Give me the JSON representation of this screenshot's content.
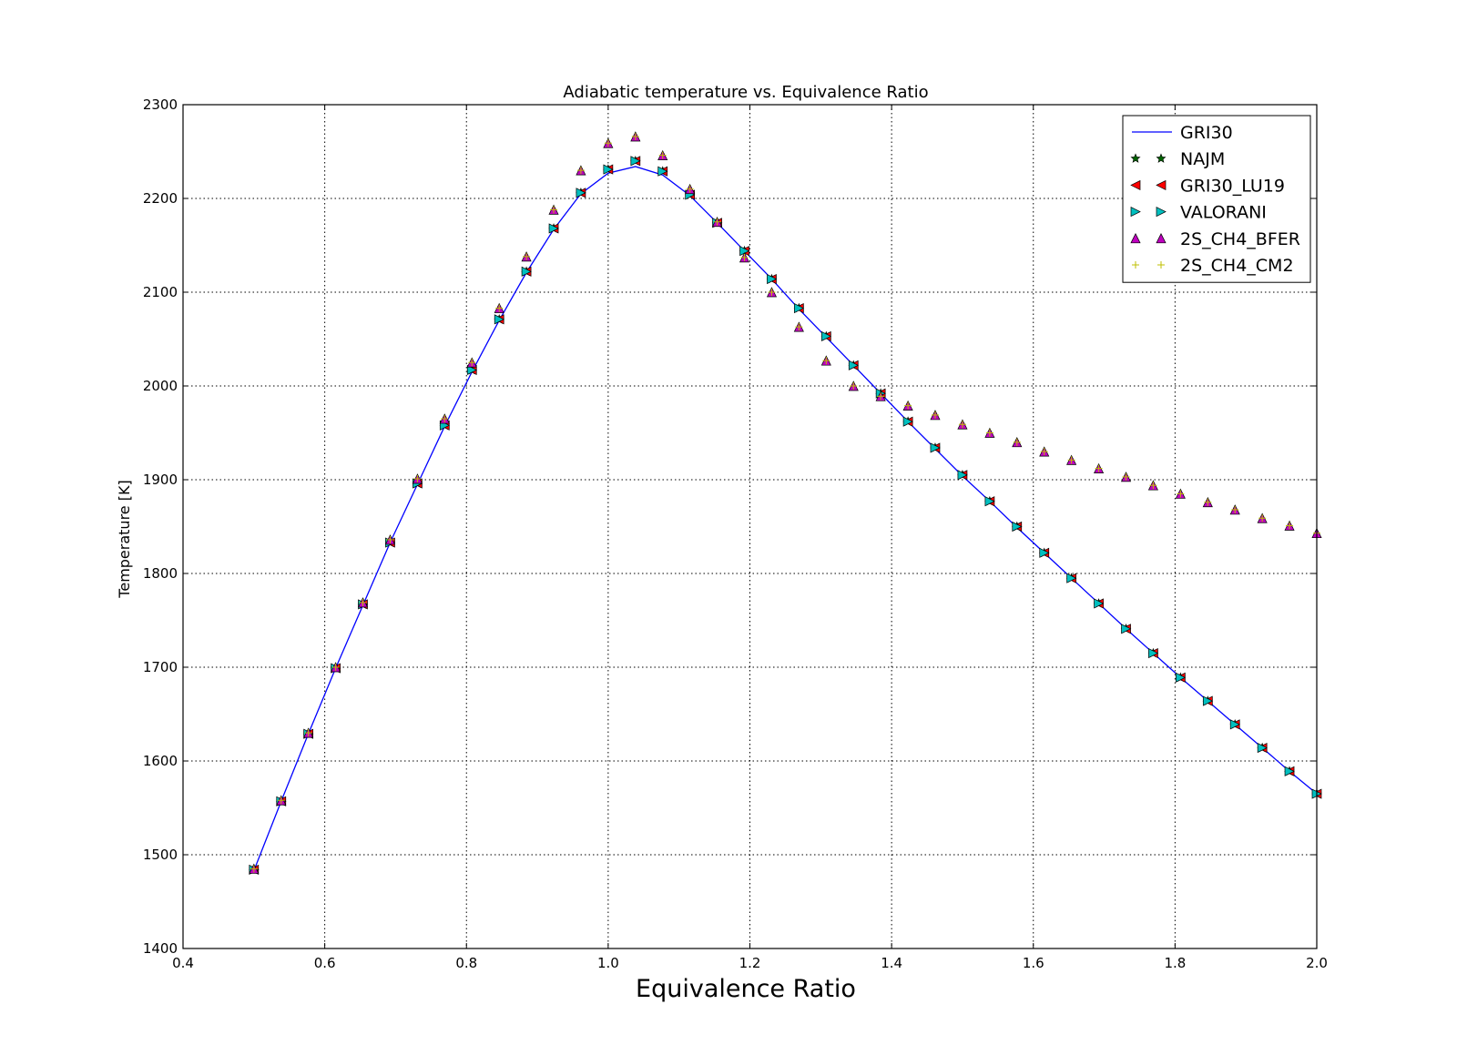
{
  "chart_data": {
    "type": "line",
    "title": "Adiabatic temperature vs. Equivalence Ratio",
    "xlabel": "Equivalence Ratio",
    "ylabel": "Temperature [K]",
    "xlim": [
      0.4,
      2.0
    ],
    "ylim": [
      1400,
      2300
    ],
    "xticks": [
      "0.4",
      "0.6",
      "0.8",
      "1.0",
      "1.2",
      "1.4",
      "1.6",
      "1.8",
      "2.0"
    ],
    "yticks": [
      "1400",
      "1500",
      "1600",
      "1700",
      "1800",
      "1900",
      "2000",
      "2100",
      "2200",
      "2300"
    ],
    "grid": true,
    "legend_position": "top-right",
    "x": [
      0.5,
      0.5385,
      0.5769,
      0.6154,
      0.6538,
      0.6923,
      0.7308,
      0.7692,
      0.8077,
      0.8462,
      0.8846,
      0.9231,
      0.9615,
      1.0,
      1.0385,
      1.0769,
      1.1154,
      1.1538,
      1.1923,
      1.2308,
      1.2692,
      1.3077,
      1.3462,
      1.3846,
      1.4231,
      1.4615,
      1.5,
      1.5385,
      1.5769,
      1.6154,
      1.6538,
      1.6923,
      1.7308,
      1.7692,
      1.8077,
      1.8462,
      1.8846,
      1.9231,
      1.9615,
      2.0
    ],
    "series": [
      {
        "name": "GRI30",
        "style": "line",
        "color": "#0000ff",
        "values": [
          1483,
          1557,
          1629,
          1699,
          1766,
          1833,
          1895,
          1957,
          2015,
          2070,
          2121,
          2167,
          2205,
          2227,
          2234,
          2225,
          2203,
          2174,
          2144,
          2114,
          2082,
          2052,
          2022,
          1992,
          1962,
          1933,
          1904,
          1877,
          1849,
          1822,
          1795,
          1768,
          1741,
          1715,
          1689,
          1664,
          1639,
          1614,
          1589,
          1565
        ]
      },
      {
        "name": "NAJM",
        "style": "marker",
        "marker": "star",
        "color": "#006400",
        "values": [
          1484,
          1557,
          1629,
          1699,
          1767,
          1833,
          1896,
          1958,
          2017,
          2071,
          2122,
          2168,
          2206,
          2231,
          2240,
          2229,
          2204,
          2174,
          2144,
          2114,
          2083,
          2053,
          2022,
          1992,
          1962,
          1934,
          1905,
          1877,
          1850,
          1822,
          1795,
          1768,
          1741,
          1715,
          1689,
          1664,
          1639,
          1614,
          1589,
          1565
        ]
      },
      {
        "name": "GRI30_LU19",
        "style": "marker",
        "marker": "triangle-left",
        "color": "#ff0000",
        "values": [
          1484,
          1557,
          1629,
          1699,
          1767,
          1833,
          1896,
          1958,
          2017,
          2071,
          2122,
          2168,
          2206,
          2231,
          2240,
          2229,
          2204,
          2174,
          2144,
          2114,
          2083,
          2053,
          2022,
          1992,
          1962,
          1934,
          1905,
          1877,
          1850,
          1822,
          1795,
          1768,
          1741,
          1715,
          1689,
          1664,
          1639,
          1614,
          1589,
          1565
        ]
      },
      {
        "name": "VALORANI",
        "style": "marker",
        "marker": "triangle-right",
        "color": "#00bfbf",
        "values": [
          1484,
          1557,
          1629,
          1699,
          1767,
          1833,
          1896,
          1958,
          2017,
          2071,
          2122,
          2168,
          2206,
          2231,
          2240,
          2229,
          2204,
          2174,
          2144,
          2114,
          2083,
          2053,
          2022,
          1992,
          1962,
          1934,
          1905,
          1877,
          1850,
          1822,
          1795,
          1768,
          1741,
          1715,
          1689,
          1664,
          1639,
          1614,
          1589,
          1565
        ]
      },
      {
        "name": "2S_CH4_BFER",
        "style": "marker",
        "marker": "triangle-up",
        "color": "#bf00bf",
        "values": [
          1485,
          1558,
          1630,
          1700,
          1769,
          1836,
          1901,
          1965,
          2025,
          2083,
          2138,
          2188,
          2230,
          2259,
          2266,
          2246,
          2210,
          2175,
          2137,
          2100,
          2063,
          2027,
          2000,
          1989,
          1979,
          1969,
          1959,
          1950,
          1940,
          1930,
          1921,
          1912,
          1903,
          1894,
          1885,
          1876,
          1868,
          1859,
          1851,
          1843
        ]
      },
      {
        "name": "2S_CH4_CM2",
        "style": "marker",
        "marker": "plus",
        "color": "#bfbf00",
        "values": [
          1485,
          1558,
          1630,
          1700,
          1769,
          1836,
          1901,
          1965,
          2025,
          2083,
          2138,
          2188,
          2230,
          2259,
          2266,
          2246,
          2210,
          2175,
          2137,
          2100,
          2063,
          2027,
          2000,
          1989,
          1979,
          1969,
          1959,
          1950,
          1940,
          1930,
          1921,
          1912,
          1903,
          1894,
          1885,
          1876,
          1868,
          1859,
          1851,
          1843
        ]
      }
    ]
  }
}
